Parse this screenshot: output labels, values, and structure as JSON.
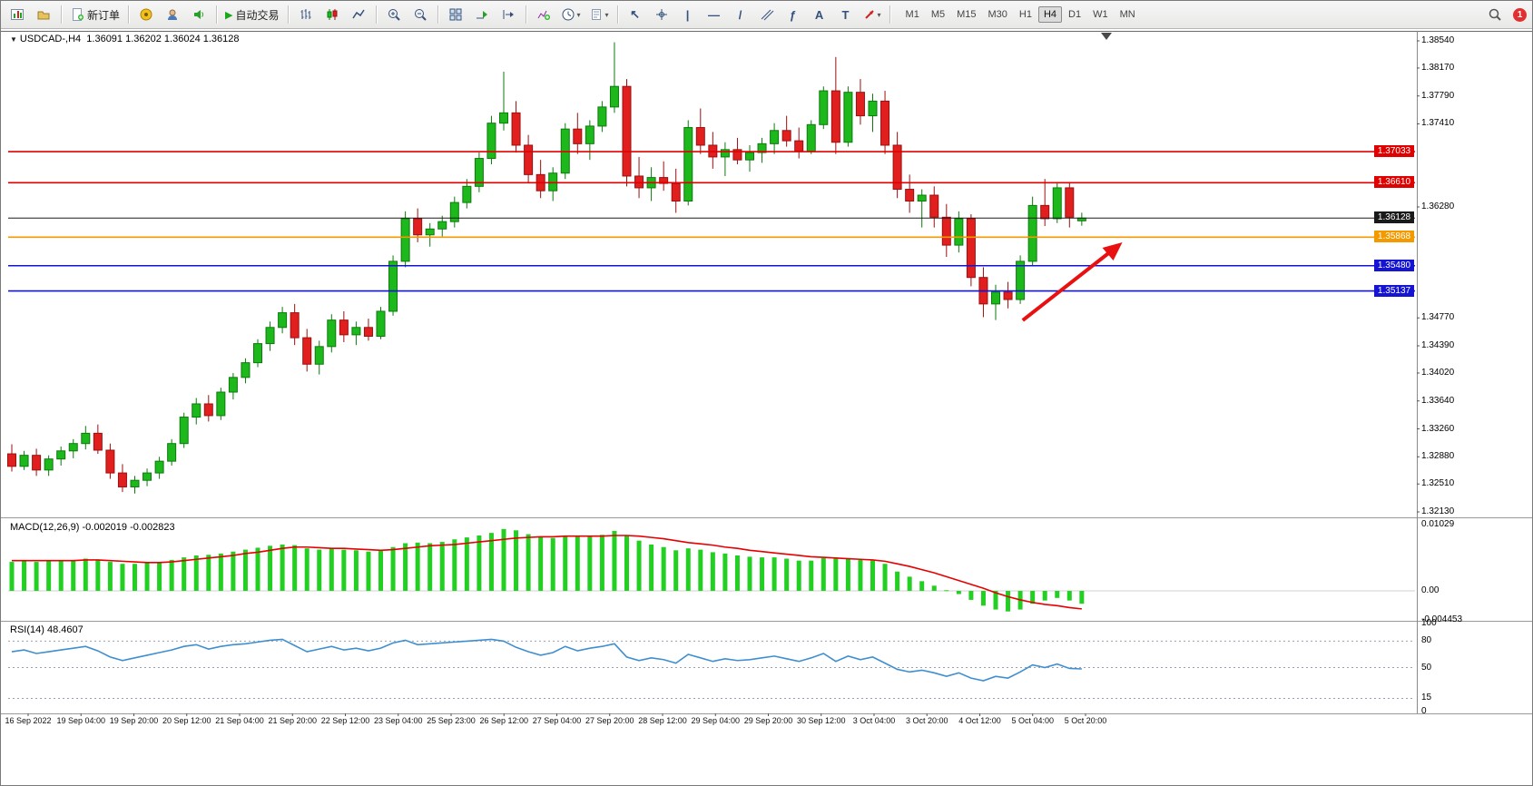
{
  "toolbar": {
    "new_order_label": "新订单",
    "auto_trading_label": "自动交易",
    "timeframes": [
      "M1",
      "M5",
      "M15",
      "M30",
      "H1",
      "H4",
      "D1",
      "W1",
      "MN"
    ],
    "active_timeframe": "H4",
    "notification_count": "1"
  },
  "icons": {
    "collapse": "▼",
    "autoplay": "▶",
    "dropdown": "▾",
    "cursor": "↖",
    "vline": "|",
    "hline": "―",
    "trendline": "/",
    "fibonacci": "ƒ",
    "text": "A",
    "label": "T"
  },
  "chart": {
    "title_symbol": "USDCAD-,H4",
    "title_ohlc": "1.36091 1.36202 1.36024 1.36128",
    "price_axis": {
      "plain_ticks": [
        "1.38540",
        "1.38170",
        "1.37790",
        "1.37410",
        "1.36280",
        "1.34770",
        "1.34390",
        "1.34020",
        "1.33640",
        "1.33260",
        "1.32880",
        "1.32510",
        "1.32130"
      ]
    },
    "price_lines": [
      {
        "label": "1.37033",
        "value": 1.37033,
        "color": "#e00000",
        "current": false
      },
      {
        "label": "1.36610",
        "value": 1.3661,
        "color": "#e00000",
        "current": false
      },
      {
        "label": "1.36128",
        "value": 1.36128,
        "color": "#1a1a1a",
        "current": true
      },
      {
        "label": "1.35868",
        "value": 1.35868,
        "color": "#f29a00",
        "current": false
      },
      {
        "label": "1.35480",
        "value": 1.3548,
        "color": "#1414d2",
        "current": false
      },
      {
        "label": "1.35137",
        "value": 1.35137,
        "color": "#1414d2",
        "current": false
      }
    ],
    "time_axis": [
      "16 Sep 2022",
      "19 Sep 04:00",
      "19 Sep 20:00",
      "20 Sep 12:00",
      "21 Sep 04:00",
      "21 Sep 20:00",
      "22 Sep 12:00",
      "23 Sep 04:00",
      "25 Sep 23:00",
      "26 Sep 12:00",
      "27 Sep 04:00",
      "27 Sep 20:00",
      "28 Sep 12:00",
      "29 Sep 04:00",
      "29 Sep 20:00",
      "30 Sep 12:00",
      "3 Oct 04:00",
      "3 Oct 20:00",
      "4 Oct 12:00",
      "5 Oct 04:00",
      "5 Oct 20:00"
    ],
    "colors": {
      "bull": "#1cb81c",
      "bull_edge": "#0d7a0d",
      "bear": "#e11f1f",
      "bear_edge": "#9c0f0f",
      "macd_hist": "#21d021",
      "macd_signal": "#e60000",
      "rsi": "#3f8fd0",
      "level_dash": "#9aa0b0"
    },
    "annotations": {
      "trend_arrow": {
        "from_bar": 82.2,
        "from_price": 1.34737,
        "to_bar": 90.3,
        "to_price": 1.35798,
        "color": "#e81010"
      }
    }
  },
  "macd": {
    "title": "MACD(12,26,9)",
    "values": "-0.002019 -0.002823",
    "axis": [
      "0.01029",
      "0.00",
      "-0.004453"
    ]
  },
  "rsi": {
    "title": "RSI(14)",
    "value": "48.4607",
    "axis": [
      "100",
      "80",
      "50",
      "15",
      "0"
    ],
    "levels": [
      80,
      50,
      15
    ]
  },
  "chart_data": [
    {
      "type": "candlestick",
      "symbol": "USDCAD",
      "timeframe": "H4",
      "ohlc": [
        [
          1.3292,
          1.3305,
          1.3268,
          1.3275
        ],
        [
          1.3275,
          1.3296,
          1.327,
          1.329
        ],
        [
          1.329,
          1.3299,
          1.3262,
          1.327
        ],
        [
          1.327,
          1.329,
          1.3262,
          1.3285
        ],
        [
          1.3285,
          1.3302,
          1.3276,
          1.3296
        ],
        [
          1.3296,
          1.3312,
          1.3286,
          1.3306
        ],
        [
          1.3306,
          1.333,
          1.3298,
          1.332
        ],
        [
          1.332,
          1.3332,
          1.3292,
          1.3297
        ],
        [
          1.3297,
          1.3306,
          1.3258,
          1.3266
        ],
        [
          1.3266,
          1.3278,
          1.324,
          1.3247
        ],
        [
          1.3247,
          1.3262,
          1.3238,
          1.3256
        ],
        [
          1.3256,
          1.3272,
          1.3248,
          1.3266
        ],
        [
          1.3266,
          1.3288,
          1.3258,
          1.3282
        ],
        [
          1.3282,
          1.3312,
          1.3276,
          1.3306
        ],
        [
          1.3306,
          1.3348,
          1.33,
          1.3342
        ],
        [
          1.3342,
          1.3368,
          1.3332,
          1.336
        ],
        [
          1.336,
          1.3372,
          1.3336,
          1.3344
        ],
        [
          1.3344,
          1.3382,
          1.3338,
          1.3376
        ],
        [
          1.3376,
          1.3402,
          1.3366,
          1.3396
        ],
        [
          1.3396,
          1.3422,
          1.3388,
          1.3416
        ],
        [
          1.3416,
          1.3448,
          1.341,
          1.3442
        ],
        [
          1.3442,
          1.3472,
          1.3432,
          1.3464
        ],
        [
          1.3464,
          1.3492,
          1.3456,
          1.3484
        ],
        [
          1.3484,
          1.3496,
          1.344,
          1.345
        ],
        [
          1.345,
          1.3462,
          1.3404,
          1.3414
        ],
        [
          1.3414,
          1.3446,
          1.34,
          1.3438
        ],
        [
          1.3438,
          1.3482,
          1.343,
          1.3474
        ],
        [
          1.3474,
          1.3486,
          1.3444,
          1.3454
        ],
        [
          1.3454,
          1.3472,
          1.344,
          1.3464
        ],
        [
          1.3464,
          1.3476,
          1.3446,
          1.3452
        ],
        [
          1.3452,
          1.3492,
          1.3448,
          1.3486
        ],
        [
          1.3486,
          1.3562,
          1.348,
          1.3554
        ],
        [
          1.3554,
          1.3622,
          1.3546,
          1.3612
        ],
        [
          1.3612,
          1.3626,
          1.358,
          1.359
        ],
        [
          1.359,
          1.3606,
          1.3574,
          1.3598
        ],
        [
          1.3598,
          1.3616,
          1.3588,
          1.3608
        ],
        [
          1.3608,
          1.3642,
          1.36,
          1.3634
        ],
        [
          1.3634,
          1.3666,
          1.3626,
          1.3656
        ],
        [
          1.3656,
          1.3702,
          1.3648,
          1.3694
        ],
        [
          1.3694,
          1.3752,
          1.3686,
          1.3742
        ],
        [
          1.3742,
          1.3812,
          1.3732,
          1.3756
        ],
        [
          1.3756,
          1.3772,
          1.3702,
          1.3712
        ],
        [
          1.3712,
          1.3726,
          1.366,
          1.3672
        ],
        [
          1.3672,
          1.3692,
          1.364,
          1.365
        ],
        [
          1.365,
          1.3682,
          1.3636,
          1.3674
        ],
        [
          1.3674,
          1.3742,
          1.3666,
          1.3734
        ],
        [
          1.3734,
          1.3756,
          1.37,
          1.3714
        ],
        [
          1.3714,
          1.3746,
          1.3692,
          1.3738
        ],
        [
          1.3738,
          1.3772,
          1.373,
          1.3764
        ],
        [
          1.3764,
          1.3852,
          1.3756,
          1.3792
        ],
        [
          1.3792,
          1.3802,
          1.3656,
          1.367
        ],
        [
          1.367,
          1.3696,
          1.364,
          1.3654
        ],
        [
          1.3654,
          1.3682,
          1.3636,
          1.3668
        ],
        [
          1.3668,
          1.369,
          1.365,
          1.366
        ],
        [
          1.366,
          1.368,
          1.362,
          1.3636
        ],
        [
          1.3636,
          1.3746,
          1.363,
          1.3736
        ],
        [
          1.3736,
          1.3762,
          1.37,
          1.3712
        ],
        [
          1.3712,
          1.373,
          1.368,
          1.3696
        ],
        [
          1.3696,
          1.3716,
          1.367,
          1.3706
        ],
        [
          1.3706,
          1.3722,
          1.3686,
          1.3692
        ],
        [
          1.3692,
          1.3712,
          1.3676,
          1.3702
        ],
        [
          1.3702,
          1.3722,
          1.3688,
          1.3714
        ],
        [
          1.3714,
          1.3742,
          1.37,
          1.3732
        ],
        [
          1.3732,
          1.3752,
          1.371,
          1.3718
        ],
        [
          1.3718,
          1.3736,
          1.3694,
          1.3704
        ],
        [
          1.3704,
          1.3746,
          1.37,
          1.374
        ],
        [
          1.374,
          1.3792,
          1.3734,
          1.3786
        ],
        [
          1.3786,
          1.3832,
          1.37,
          1.3716
        ],
        [
          1.3716,
          1.3792,
          1.371,
          1.3784
        ],
        [
          1.3784,
          1.3802,
          1.374,
          1.3752
        ],
        [
          1.3752,
          1.3782,
          1.373,
          1.3772
        ],
        [
          1.3772,
          1.3786,
          1.37,
          1.3712
        ],
        [
          1.3712,
          1.373,
          1.364,
          1.3652
        ],
        [
          1.3652,
          1.3672,
          1.362,
          1.3636
        ],
        [
          1.3636,
          1.3652,
          1.36,
          1.3644
        ],
        [
          1.3644,
          1.3656,
          1.36,
          1.3614
        ],
        [
          1.3614,
          1.3632,
          1.356,
          1.3576
        ],
        [
          1.3576,
          1.3622,
          1.3566,
          1.3612
        ],
        [
          1.3612,
          1.3618,
          1.352,
          1.3532
        ],
        [
          1.3532,
          1.3546,
          1.3478,
          1.3496
        ],
        [
          1.3496,
          1.3522,
          1.3474,
          1.3512
        ],
        [
          1.3512,
          1.3526,
          1.349,
          1.3502
        ],
        [
          1.3502,
          1.3562,
          1.3496,
          1.3554
        ],
        [
          1.3554,
          1.3642,
          1.3548,
          1.363
        ],
        [
          1.363,
          1.3666,
          1.3602,
          1.3612
        ],
        [
          1.3612,
          1.3662,
          1.3606,
          1.3654
        ],
        [
          1.3654,
          1.3662,
          1.36,
          1.3614
        ],
        [
          1.36091,
          1.36202,
          1.36024,
          1.36128
        ]
      ]
    },
    {
      "type": "bar",
      "name": "MACD histogram",
      "ylim": [
        -0.004453,
        0.01029
      ],
      "values": [
        0.0045,
        0.0046,
        0.0045,
        0.0046,
        0.0047,
        0.0048,
        0.005,
        0.0048,
        0.0045,
        0.0042,
        0.0042,
        0.0043,
        0.0045,
        0.0048,
        0.0052,
        0.0055,
        0.0056,
        0.0058,
        0.0061,
        0.0064,
        0.0067,
        0.007,
        0.0072,
        0.0071,
        0.0066,
        0.0064,
        0.0066,
        0.0064,
        0.0063,
        0.0061,
        0.0062,
        0.0068,
        0.0074,
        0.0075,
        0.0074,
        0.0076,
        0.008,
        0.0083,
        0.0086,
        0.009,
        0.0096,
        0.0094,
        0.0088,
        0.0084,
        0.0082,
        0.0086,
        0.0085,
        0.0085,
        0.0087,
        0.0093,
        0.0086,
        0.0078,
        0.0072,
        0.0068,
        0.0063,
        0.0066,
        0.0064,
        0.006,
        0.0058,
        0.0055,
        0.0053,
        0.0052,
        0.0052,
        0.005,
        0.0047,
        0.0047,
        0.0051,
        0.005,
        0.005,
        0.0048,
        0.0047,
        0.0042,
        0.003,
        0.0022,
        0.0015,
        0.0008,
        0.0001,
        -0.0005,
        -0.0014,
        -0.0023,
        -0.0029,
        -0.0032,
        -0.0029,
        -0.002,
        -0.0015,
        -0.0011,
        -0.0015,
        -0.002
      ]
    },
    {
      "type": "line",
      "name": "MACD signal",
      "values": [
        0.0047,
        0.0047,
        0.0047,
        0.0047,
        0.0047,
        0.0047,
        0.0048,
        0.0048,
        0.0047,
        0.0046,
        0.0045,
        0.0044,
        0.0044,
        0.0045,
        0.0047,
        0.0049,
        0.0051,
        0.0053,
        0.0055,
        0.0058,
        0.006,
        0.0063,
        0.0066,
        0.0068,
        0.0068,
        0.0067,
        0.0066,
        0.0066,
        0.0065,
        0.0064,
        0.0063,
        0.0064,
        0.0066,
        0.0068,
        0.007,
        0.0071,
        0.0072,
        0.0074,
        0.0076,
        0.0078,
        0.008,
        0.0082,
        0.0083,
        0.0084,
        0.0084,
        0.0085,
        0.0085,
        0.0085,
        0.0085,
        0.0086,
        0.0086,
        0.0085,
        0.0083,
        0.0081,
        0.0078,
        0.0075,
        0.0073,
        0.0071,
        0.0068,
        0.0066,
        0.0063,
        0.0061,
        0.0059,
        0.0057,
        0.0055,
        0.0053,
        0.0052,
        0.0051,
        0.005,
        0.0049,
        0.0048,
        0.0046,
        0.0042,
        0.0038,
        0.0033,
        0.0028,
        0.0022,
        0.0016,
        0.001,
        0.0004,
        -0.0003,
        -0.0009,
        -0.0014,
        -0.0018,
        -0.0021,
        -0.0023,
        -0.0026,
        -0.0028
      ]
    },
    {
      "type": "line",
      "name": "RSI(14)",
      "ylim": [
        0,
        100
      ],
      "values": [
        68,
        70,
        66,
        68,
        70,
        72,
        74,
        69,
        62,
        58,
        61,
        64,
        67,
        70,
        74,
        76,
        71,
        74,
        76,
        77,
        79,
        81,
        82,
        75,
        68,
        71,
        74,
        70,
        72,
        69,
        72,
        78,
        81,
        76,
        77,
        78,
        79,
        80,
        81,
        82,
        80,
        73,
        68,
        64,
        67,
        74,
        69,
        72,
        74,
        77,
        62,
        58,
        61,
        59,
        55,
        65,
        61,
        57,
        60,
        58,
        59,
        61,
        63,
        60,
        57,
        61,
        66,
        57,
        63,
        59,
        62,
        55,
        48,
        45,
        47,
        44,
        40,
        44,
        38,
        35,
        40,
        38,
        45,
        53,
        50,
        54,
        49,
        48.4607
      ]
    }
  ]
}
